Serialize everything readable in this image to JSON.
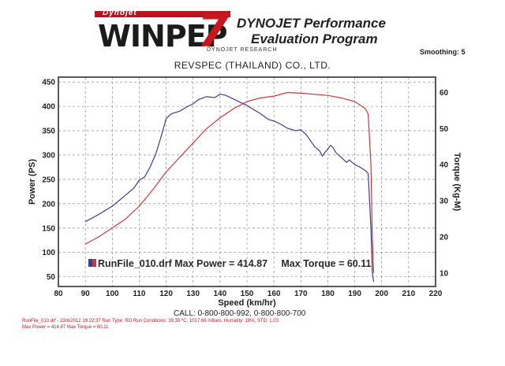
{
  "header": {
    "logo_small": "Dynojet",
    "logo_main": "WINPEP",
    "logo_number": "7",
    "title_line1": "DYNOJET Performance",
    "title_line2": "Evaluation Program",
    "smoothing": "Smoothing: 5",
    "research": "DYNOJET RESEARCH",
    "company": "REVSPEC (THAILAND) CO., LTD."
  },
  "footer": {
    "call": "CALL: 0-800-800-992, 0-800-800-700",
    "run_info": "RunFile_010.drf - 23/6/2012 19:22:37  Run Type: RO  Run Conditions: 39.35 ºC, 1017.66 mBars, Humidity: 19%, STD: 1.03",
    "max_info": "Max Power = 414.87   Max Torque = 60.11"
  },
  "colors": {
    "power": "#3b3f8c",
    "torque": "#d6343a",
    "grid": "#7a7a7a",
    "legend_swatch_left": "#3b3f8c",
    "legend_swatch_right": "#d6343a"
  },
  "chart_data": {
    "type": "line",
    "xlabel": "Speed (km/hr)",
    "ylabel_left": "Power (PS)",
    "ylabel_right": "Torque (Kg-M)",
    "xlim": [
      80,
      220
    ],
    "ylim_left": [
      30,
      460
    ],
    "ylim_right": [
      6.25,
      64.25
    ],
    "x_ticks": [
      80,
      90,
      100,
      110,
      120,
      130,
      140,
      150,
      160,
      170,
      180,
      190,
      200,
      210,
      220
    ],
    "y_ticks_left": [
      50,
      100,
      150,
      200,
      250,
      300,
      350,
      400,
      450
    ],
    "y_ticks_right": [
      10,
      20,
      30,
      40,
      50,
      60
    ],
    "grid": true,
    "legend_text": "RunFile_010.drf Max Power = 414.87     Max Torque = 60.11",
    "series": [
      {
        "name": "Power",
        "axis": "left",
        "x": [
          90,
          95,
          100,
          105,
          108,
          110,
          112,
          114,
          116,
          118,
          120,
          122,
          125,
          128,
          130,
          132,
          135,
          138,
          140,
          142,
          145,
          148,
          150,
          152,
          155,
          158,
          160,
          163,
          165,
          168,
          170,
          172,
          175,
          177,
          178,
          179,
          180,
          181,
          182,
          183,
          185,
          187,
          188,
          190,
          192,
          194,
          195,
          196,
          196.5,
          197
        ],
        "values": [
          163,
          178,
          195,
          218,
          232,
          248,
          255,
          275,
          300,
          335,
          375,
          385,
          390,
          400,
          405,
          414,
          420,
          418,
          425,
          423,
          415,
          407,
          402,
          395,
          385,
          373,
          370,
          362,
          355,
          350,
          352,
          342,
          318,
          308,
          298,
          306,
          312,
          320,
          315,
          305,
          295,
          285,
          290,
          280,
          275,
          268,
          262,
          150,
          60,
          40
        ]
      },
      {
        "name": "Torque",
        "axis": "right",
        "x": [
          90,
          95,
          100,
          105,
          110,
          115,
          120,
          125,
          130,
          135,
          140,
          145,
          150,
          155,
          160,
          165,
          170,
          175,
          180,
          185,
          190,
          193,
          194,
          195,
          196,
          196.5,
          197
        ],
        "values": [
          18,
          20,
          22.5,
          25,
          28.5,
          33,
          38,
          42,
          46,
          50,
          53,
          55.5,
          57.5,
          58.5,
          59,
          60,
          59.8,
          59.5,
          59.2,
          58.5,
          57.5,
          56,
          55.5,
          54,
          40,
          20,
          10
        ]
      }
    ]
  }
}
